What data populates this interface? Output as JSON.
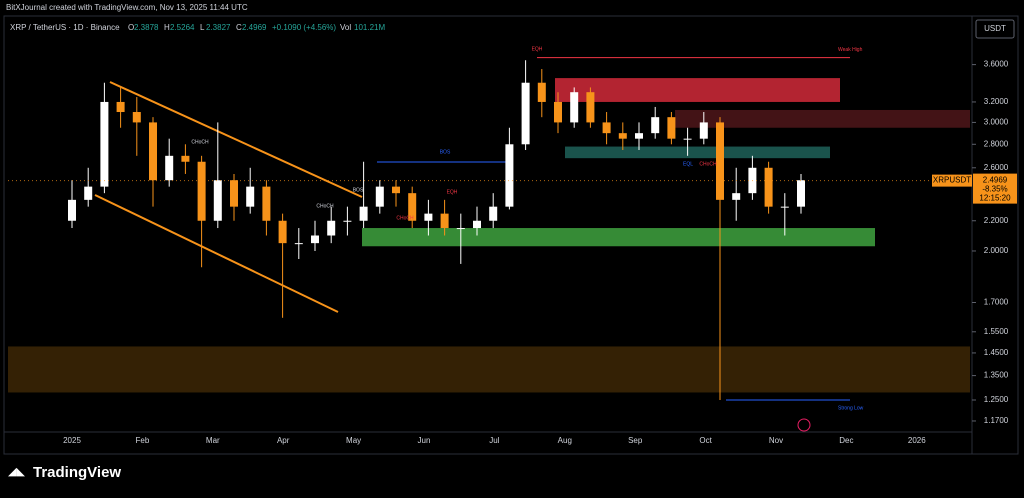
{
  "header": {
    "credit": "BitXJournal created with TradingView.com, Nov 13, 2025 11:44 UTC",
    "symbol": "XRP / TetherUS · 1D · Binance",
    "ohlc": [
      {
        "label": "O",
        "value": "2.3878"
      },
      {
        "label": "H",
        "value": "2.5264"
      },
      {
        "label": "L",
        "value": "2.3827"
      },
      {
        "label": "C",
        "value": "2.4969"
      }
    ],
    "change": "+0.1090 (+4.56%)",
    "volume_label": "Vol",
    "volume": "101.21M"
  },
  "footer": {
    "brand": "TradingView"
  },
  "chart_data": {
    "type": "candlestick",
    "currency": "USDT",
    "log_scale": true,
    "categories": [
      "2025",
      "Feb",
      "Mar",
      "Apr",
      "May",
      "Jun",
      "Jul",
      "Aug",
      "Sep",
      "Oct",
      "Nov",
      "Dec",
      "2026"
    ],
    "open": [
      2.2,
      2.35,
      2.45,
      3.2,
      3.1,
      3.0,
      2.5,
      2.7,
      2.65,
      2.2,
      2.5,
      2.3,
      2.45,
      2.2,
      2.05,
      2.05,
      2.1,
      2.2,
      2.2,
      2.3,
      2.45,
      2.4,
      2.2,
      2.25,
      2.15,
      2.15,
      2.2,
      2.3,
      2.8,
      3.4,
      3.2,
      3.0,
      3.3,
      3.0,
      2.9,
      2.85,
      2.9,
      3.05,
      2.85,
      2.85,
      3.0,
      2.35,
      2.4,
      2.6,
      2.3,
      2.3
    ],
    "high": [
      2.5,
      2.6,
      3.4,
      3.35,
      3.25,
      3.05,
      2.85,
      2.8,
      2.7,
      3.0,
      2.55,
      2.6,
      2.5,
      2.25,
      2.15,
      2.2,
      2.3,
      2.3,
      2.65,
      2.5,
      2.5,
      2.45,
      2.35,
      2.35,
      2.25,
      2.3,
      2.4,
      2.95,
      3.65,
      3.55,
      3.3,
      3.35,
      3.35,
      3.1,
      3.0,
      3.0,
      3.15,
      3.1,
      2.95,
      3.1,
      3.05,
      2.6,
      2.7,
      2.65,
      2.4,
      2.55
    ],
    "low": [
      2.15,
      2.3,
      2.4,
      2.95,
      2.7,
      2.3,
      2.45,
      2.55,
      1.9,
      2.15,
      2.2,
      2.25,
      2.1,
      1.62,
      1.95,
      2.0,
      2.05,
      2.1,
      2.15,
      2.25,
      2.3,
      2.15,
      2.1,
      2.1,
      1.92,
      2.1,
      2.15,
      2.28,
      2.75,
      3.05,
      2.9,
      2.95,
      2.95,
      2.8,
      2.75,
      2.75,
      2.85,
      2.8,
      2.7,
      2.8,
      1.25,
      2.2,
      2.35,
      2.25,
      2.1,
      2.25
    ],
    "close": [
      2.35,
      2.45,
      3.2,
      3.1,
      3.0,
      2.5,
      2.7,
      2.65,
      2.2,
      2.5,
      2.3,
      2.45,
      2.2,
      2.05,
      2.05,
      2.1,
      2.2,
      2.2,
      2.3,
      2.45,
      2.4,
      2.2,
      2.25,
      2.15,
      2.15,
      2.2,
      2.3,
      2.8,
      3.4,
      3.2,
      3.0,
      3.3,
      3.0,
      2.9,
      2.85,
      2.9,
      3.05,
      2.85,
      2.85,
      3.0,
      2.35,
      2.4,
      2.6,
      2.3,
      2.3,
      2.5
    ],
    "up_color": "#ffffff",
    "down_color": "#f7931a",
    "ylim": [
      1.13,
      4.17
    ],
    "yticks": [
      {
        "value": 1.17,
        "label": "1.1700"
      },
      {
        "value": 1.25,
        "label": "1.2500"
      },
      {
        "value": 1.35,
        "label": "1.3500"
      },
      {
        "value": 1.45,
        "label": "1.4500"
      },
      {
        "value": 1.55,
        "label": "1.5500"
      },
      {
        "value": 1.7,
        "label": "1.7000"
      },
      {
        "value": 2.0,
        "label": "2.0000"
      },
      {
        "value": 2.2,
        "label": "2.2000"
      },
      {
        "value": 2.6,
        "label": "2.6000"
      },
      {
        "value": 2.8,
        "label": "2.8000"
      },
      {
        "value": 3.0,
        "label": "3.0000"
      },
      {
        "value": 3.2,
        "label": "3.2000"
      },
      {
        "value": 3.6,
        "label": "3.6000"
      }
    ],
    "last_price": {
      "value": 2.4969,
      "label": "2.4969",
      "symbol": "XRPUSDT",
      "change": "-8.35%",
      "countdown": "12:15:20"
    },
    "zones": [
      {
        "high": 3.45,
        "low": 3.2,
        "color": "#c62836"
      },
      {
        "high": 3.12,
        "low": 2.95,
        "color": "#4a1518"
      },
      {
        "high": 2.78,
        "low": 2.68,
        "color": "#1d5c54"
      },
      {
        "high": 2.15,
        "low": 2.03,
        "color": "#3c9a3c"
      },
      {
        "high": 1.48,
        "low": 1.28,
        "color": "#3a2506"
      }
    ],
    "weak_high": {
      "label": "Weak High",
      "value": 3.68
    },
    "strong_low": {
      "label": "Strong Low",
      "value": 1.25
    },
    "annotations": [
      "BOS",
      "EQH",
      "CHoCH",
      "EQL",
      "BOS",
      "CHoCH",
      "CHoCH",
      "EQH",
      "CHoCH"
    ]
  }
}
